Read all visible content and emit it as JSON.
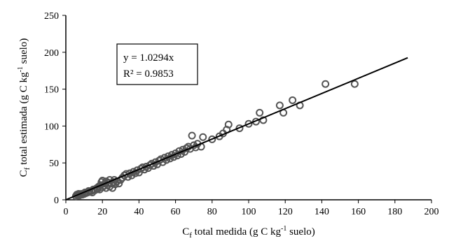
{
  "chart_data": {
    "type": "scatter",
    "xlabel": {
      "main": "C",
      "sub": "f",
      "mid": " total medida (g C kg",
      "sup": "-1",
      "end": " suelo)"
    },
    "ylabel": {
      "main": "C",
      "sub": "f",
      "mid": " total estimada (g C kg",
      "sup": "-1",
      "end": " suelo)"
    },
    "xlim": [
      0,
      200
    ],
    "ylim": [
      0,
      250
    ],
    "xticks": [
      "0",
      "20",
      "40",
      "60",
      "80",
      "100",
      "120",
      "140",
      "160",
      "180",
      "200"
    ],
    "yticks": [
      "0",
      "50",
      "100",
      "150",
      "200",
      "250"
    ],
    "grid": false,
    "trendline": {
      "slope": 1.0294,
      "x_end": 187,
      "equation": "y = 1.0294x",
      "r2": "R² = 0.9853"
    },
    "marker_color": "#555555",
    "points": [
      [
        5.5,
        5
      ],
      [
        6,
        7
      ],
      [
        6.5,
        6
      ],
      [
        7,
        8
      ],
      [
        7.5,
        6
      ],
      [
        8,
        7
      ],
      [
        8.5,
        8
      ],
      [
        9,
        7
      ],
      [
        10,
        8
      ],
      [
        10.5,
        10
      ],
      [
        11,
        9
      ],
      [
        12,
        10
      ],
      [
        12.5,
        12
      ],
      [
        13,
        11
      ],
      [
        14,
        12
      ],
      [
        14.5,
        10
      ],
      [
        15,
        14
      ],
      [
        16,
        13
      ],
      [
        17,
        16
      ],
      [
        17.5,
        15
      ],
      [
        18,
        18
      ],
      [
        18.5,
        14
      ],
      [
        19,
        20
      ],
      [
        19.5,
        24
      ],
      [
        20,
        17
      ],
      [
        20,
        26
      ],
      [
        21,
        19
      ],
      [
        21.5,
        22
      ],
      [
        22,
        16
      ],
      [
        22,
        25
      ],
      [
        23,
        20
      ],
      [
        23.5,
        23
      ],
      [
        24,
        18
      ],
      [
        24,
        27
      ],
      [
        25,
        22
      ],
      [
        25.5,
        16
      ],
      [
        26,
        24
      ],
      [
        26.5,
        27
      ],
      [
        27,
        21
      ],
      [
        28,
        25
      ],
      [
        29,
        22
      ],
      [
        30,
        27
      ],
      [
        31,
        30
      ],
      [
        32,
        33
      ],
      [
        33,
        35
      ],
      [
        34,
        31
      ],
      [
        35,
        36
      ],
      [
        36,
        33
      ],
      [
        37,
        38
      ],
      [
        38,
        36
      ],
      [
        39,
        40
      ],
      [
        40,
        37
      ],
      [
        41,
        42
      ],
      [
        42,
        44
      ],
      [
        43,
        41
      ],
      [
        44,
        45
      ],
      [
        45,
        43
      ],
      [
        46,
        47
      ],
      [
        47,
        49
      ],
      [
        48,
        46
      ],
      [
        49,
        51
      ],
      [
        50,
        48
      ],
      [
        51,
        53
      ],
      [
        52,
        55
      ],
      [
        53,
        51
      ],
      [
        54,
        57
      ],
      [
        55,
        54
      ],
      [
        56,
        59
      ],
      [
        57,
        56
      ],
      [
        58,
        61
      ],
      [
        59,
        58
      ],
      [
        60,
        63
      ],
      [
        61,
        60
      ],
      [
        62,
        66
      ],
      [
        63,
        62
      ],
      [
        64,
        68
      ],
      [
        65,
        65
      ],
      [
        66,
        70
      ],
      [
        67,
        72
      ],
      [
        68,
        69
      ],
      [
        69,
        87
      ],
      [
        70,
        74
      ],
      [
        71,
        71
      ],
      [
        72,
        76
      ],
      [
        74,
        72
      ],
      [
        75,
        85
      ],
      [
        80,
        82
      ],
      [
        84,
        86
      ],
      [
        86,
        90
      ],
      [
        88,
        95
      ],
      [
        89,
        102
      ],
      [
        95,
        97
      ],
      [
        100,
        103
      ],
      [
        104,
        106
      ],
      [
        106,
        118
      ],
      [
        108,
        108
      ],
      [
        117,
        128
      ],
      [
        119,
        118
      ],
      [
        124,
        135
      ],
      [
        128,
        128
      ],
      [
        142,
        157
      ],
      [
        158,
        157
      ]
    ]
  }
}
